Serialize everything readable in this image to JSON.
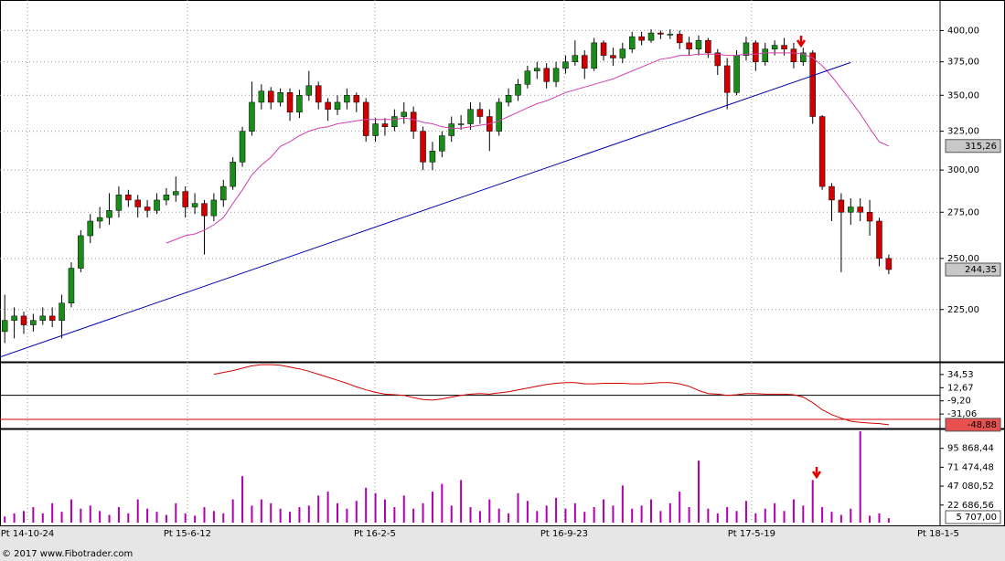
{
  "chart_data": [
    {
      "type": "candlestick",
      "xlim": [
        -0.5,
        98.4
      ],
      "ylim": [
        202,
        426
      ],
      "log_scale": true,
      "grid": true,
      "yticks": [
        {
          "value": 225,
          "label": "225,00"
        },
        {
          "value": 250,
          "label": "250,00"
        },
        {
          "value": 275,
          "label": "275,00"
        },
        {
          "value": 300,
          "label": "300,00"
        },
        {
          "value": 325,
          "label": "325,00"
        },
        {
          "value": 350,
          "label": "350,00"
        },
        {
          "value": 375,
          "label": "375,00"
        },
        {
          "value": 400,
          "label": "400,00"
        }
      ],
      "candles": {
        "up_color": "#1a8c1a",
        "down_color": "#d00000",
        "last_label": "244,35",
        "open": [
          215,
          220,
          222,
          218,
          220,
          222,
          220,
          228,
          245,
          262,
          270,
          272,
          276,
          285,
          282,
          278,
          276,
          282,
          285,
          287,
          278,
          280,
          273,
          282,
          290,
          305,
          325,
          345,
          353,
          345,
          352,
          338,
          350,
          357,
          345,
          340,
          345,
          350,
          345,
          322,
          330,
          328,
          335,
          338,
          325,
          305,
          312,
          322,
          330,
          330,
          340,
          335,
          325,
          345,
          350,
          358,
          368,
          370,
          360,
          370,
          375,
          380,
          370,
          390,
          380,
          378,
          385,
          395,
          392,
          398,
          397,
          397,
          390,
          385,
          392,
          382,
          372,
          352,
          380,
          390,
          375,
          385,
          388,
          385,
          375,
          382,
          335,
          290,
          282,
          275,
          278,
          275,
          270,
          250
        ],
        "high": [
          232,
          226,
          224,
          223,
          226,
          226,
          232,
          248,
          265,
          274,
          278,
          286,
          290,
          288,
          285,
          282,
          286,
          289,
          296,
          290,
          286,
          282,
          286,
          294,
          308,
          328,
          360,
          358,
          356,
          355,
          355,
          354,
          368,
          360,
          348,
          350,
          355,
          352,
          348,
          334,
          334,
          340,
          345,
          342,
          328,
          318,
          325,
          335,
          336,
          345,
          345,
          340,
          348,
          355,
          362,
          372,
          375,
          374,
          375,
          380,
          392,
          384,
          394,
          392,
          386,
          390,
          399,
          399,
          401,
          400,
          401,
          400,
          395,
          396,
          394,
          385,
          378,
          384,
          395,
          392,
          390,
          392,
          394,
          390,
          386,
          384,
          336,
          292,
          286,
          283,
          283,
          282,
          272,
          252
        ],
        "low": [
          210,
          212,
          214,
          215,
          218,
          217,
          212,
          226,
          243,
          258,
          266,
          268,
          272,
          278,
          272,
          272,
          274,
          279,
          281,
          272,
          274,
          252,
          270,
          278,
          288,
          302,
          322,
          340,
          340,
          342,
          332,
          334,
          346,
          340,
          332,
          336,
          340,
          338,
          318,
          318,
          322,
          325,
          330,
          320,
          300,
          300,
          308,
          318,
          326,
          326,
          330,
          312,
          322,
          342,
          346,
          355,
          362,
          355,
          356,
          366,
          372,
          362,
          368,
          376,
          372,
          374,
          382,
          388,
          390,
          393,
          393,
          385,
          380,
          380,
          378,
          365,
          340,
          350,
          376,
          368,
          372,
          380,
          380,
          370,
          372,
          330,
          288,
          270,
          243,
          268,
          270,
          262,
          246,
          242
        ],
        "close": [
          220,
          222,
          218,
          220,
          222,
          220,
          228,
          245,
          262,
          270,
          272,
          276,
          285,
          282,
          278,
          276,
          282,
          285,
          287,
          278,
          280,
          273,
          282,
          290,
          305,
          325,
          345,
          353,
          345,
          352,
          338,
          350,
          357,
          345,
          340,
          345,
          350,
          345,
          322,
          330,
          328,
          335,
          338,
          325,
          305,
          312,
          322,
          330,
          330,
          340,
          335,
          325,
          345,
          350,
          358,
          368,
          370,
          360,
          370,
          375,
          380,
          370,
          390,
          380,
          378,
          385,
          395,
          392,
          398,
          397,
          397,
          390,
          385,
          392,
          382,
          372,
          352,
          380,
          390,
          375,
          385,
          388,
          385,
          375,
          382,
          335,
          290,
          282,
          275,
          278,
          275,
          270,
          250,
          244.35
        ]
      },
      "moving_average": {
        "color": "#d040b0",
        "last_label": "315,26",
        "values": [
          null,
          null,
          null,
          null,
          null,
          null,
          null,
          null,
          null,
          null,
          null,
          null,
          null,
          null,
          null,
          null,
          null,
          258,
          260,
          262,
          263,
          265,
          268,
          272,
          280,
          288,
          297,
          303,
          308,
          315,
          318,
          322,
          325,
          327,
          328,
          330,
          331,
          332,
          333,
          333,
          333,
          333,
          334,
          333,
          331,
          330,
          328,
          327,
          327,
          328,
          329,
          330,
          332,
          335,
          338,
          341,
          344,
          346,
          349,
          352,
          354,
          356,
          358,
          360,
          362,
          365,
          368,
          371,
          374,
          377,
          378,
          380,
          380,
          381,
          381,
          381,
          380,
          380,
          381,
          381,
          382,
          382,
          382,
          382,
          381,
          378,
          372,
          364,
          355,
          346,
          337,
          327,
          318,
          315.26
        ]
      },
      "trendline": {
        "color": "#0000b0",
        "x": [
          -0.5,
          89
        ],
        "values": [
          204,
          374.5
        ]
      }
    },
    {
      "type": "line",
      "ylim": [
        -53.6,
        52.6
      ],
      "color": "#d00000",
      "last_label": "-48,88",
      "yticks": [
        {
          "value": 34.53,
          "label": "34,53"
        },
        {
          "value": 12.67,
          "label": "12,67"
        },
        {
          "value": -9.2,
          "label": "-9,20"
        },
        {
          "value": -31.06,
          "label": "-31,06"
        }
      ],
      "levels": [
        {
          "value": 0,
          "color": "#000000"
        },
        {
          "value": -40,
          "color": "#d00000"
        }
      ],
      "values": [
        null,
        null,
        null,
        null,
        null,
        null,
        null,
        null,
        null,
        null,
        null,
        null,
        null,
        null,
        null,
        null,
        null,
        null,
        null,
        null,
        null,
        null,
        35,
        38,
        41,
        45,
        49,
        51,
        51,
        50,
        47,
        44,
        40,
        35,
        30,
        25,
        20,
        14,
        9,
        5,
        2,
        1,
        0,
        -4,
        -7,
        -8,
        -6,
        -3,
        0,
        2,
        3,
        2,
        4,
        6,
        9,
        12,
        15,
        18,
        20,
        21,
        21,
        19,
        19,
        20,
        20,
        20,
        19,
        19,
        20,
        21,
        21,
        19,
        15,
        8,
        3,
        2,
        0,
        1,
        3,
        3,
        2,
        2,
        2,
        1,
        -3,
        -12,
        -24,
        -32,
        -38,
        -43,
        -45,
        -46,
        -47,
        -48.88
      ]
    },
    {
      "type": "bar",
      "ylim": [
        0,
        119100
      ],
      "color": "#b000b0",
      "last_label": "5 707,00",
      "yticks": [
        {
          "value": 22686.56,
          "label": "22 686,56"
        },
        {
          "value": 47080.52,
          "label": "47 080,52"
        },
        {
          "value": 71474.48,
          "label": "71 474,48"
        },
        {
          "value": 95868.44,
          "label": "95 868,44"
        }
      ],
      "xticks": [
        {
          "value": 2.39,
          "label": "Pt 14-10-24"
        },
        {
          "value": 19.22,
          "label": "Pt 15-6-12"
        },
        {
          "value": 38.94,
          "label": "Pt 16-2-5"
        },
        {
          "value": 58.85,
          "label": "Pt 16-9-23"
        },
        {
          "value": 78.57,
          "label": "Pt 17-5-19"
        },
        {
          "value": 98.2,
          "label": "Pt 18-1-5"
        }
      ],
      "values": [
        8000,
        12000,
        15000,
        20000,
        12000,
        25000,
        14000,
        30000,
        18000,
        22000,
        15000,
        10000,
        20000,
        12000,
        30000,
        18000,
        14000,
        10000,
        25000,
        12000,
        9000,
        20000,
        15000,
        12000,
        30000,
        60000,
        22000,
        30000,
        25000,
        18000,
        14000,
        20000,
        22000,
        35000,
        40000,
        25000,
        18000,
        28000,
        45000,
        38000,
        30000,
        20000,
        35000,
        18000,
        25000,
        40000,
        50000,
        22000,
        55000,
        20000,
        15000,
        30000,
        18000,
        12000,
        38000,
        28000,
        15000,
        22000,
        32000,
        18000,
        25000,
        14000,
        20000,
        30000,
        22000,
        48000,
        18000,
        22000,
        30000,
        15000,
        25000,
        40000,
        20000,
        80000,
        18000,
        12000,
        20000,
        15000,
        28000,
        12000,
        18000,
        25000,
        15000,
        30000,
        22000,
        55000,
        20000,
        14000,
        10000,
        18000,
        118000,
        9000,
        12000,
        5707
      ]
    }
  ],
  "footer": "© 2017 www.Fibotrader.com"
}
